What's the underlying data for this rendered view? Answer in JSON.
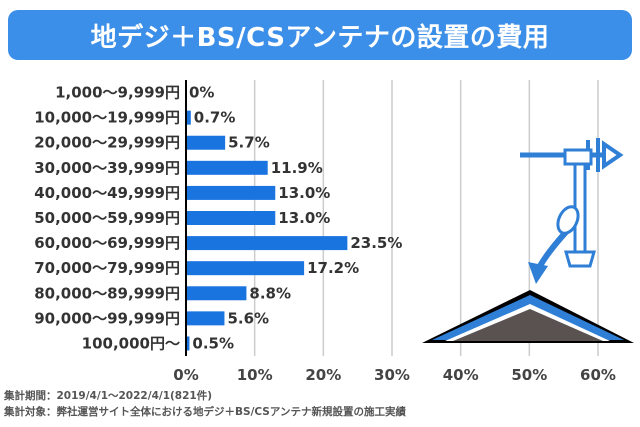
{
  "header": {
    "title": "地デジ＋BS/CSアンテナの設置の費用"
  },
  "footnotes": {
    "period": "集計期間：2019/4/1〜2022/4/1(821件)",
    "target": "集計対象：弊社運営サイト全体における地デジ＋BS/CSアンテナ新規設置の施工実績"
  },
  "colors": {
    "title_bg": "#3c8fe8",
    "bar": "#1a74e0",
    "illustration_blue": "#2f7fd6",
    "roof_dark": "#5a5250"
  },
  "illustration": {
    "icon": "antenna-on-roof-icon"
  },
  "chart_data": {
    "type": "bar",
    "orientation": "horizontal",
    "categories": [
      "1,000〜9,999円",
      "10,000〜19,999円",
      "20,000〜29,999円",
      "30,000〜39,999円",
      "40,000〜49,999円",
      "50,000〜59,999円",
      "60,000〜69,999円",
      "70,000〜79,999円",
      "80,000〜89,999円",
      "90,000〜99,999円",
      "100,000円〜"
    ],
    "values": [
      0,
      0.7,
      5.7,
      11.9,
      13.0,
      13.0,
      23.5,
      17.2,
      8.8,
      5.6,
      0.5
    ],
    "value_labels": [
      "0%",
      "0.7%",
      "5.7%",
      "11.9%",
      "13.0%",
      "13.0%",
      "23.5%",
      "17.2%",
      "8.8%",
      "5.6%",
      "0.5%"
    ],
    "xlim": [
      0,
      60
    ],
    "xticks": [
      0,
      10,
      20,
      30,
      40,
      50,
      60
    ],
    "xtick_labels": [
      "0%",
      "10%",
      "20%",
      "30%",
      "40%",
      "50%",
      "60%"
    ],
    "grid": true,
    "legend": "none"
  }
}
